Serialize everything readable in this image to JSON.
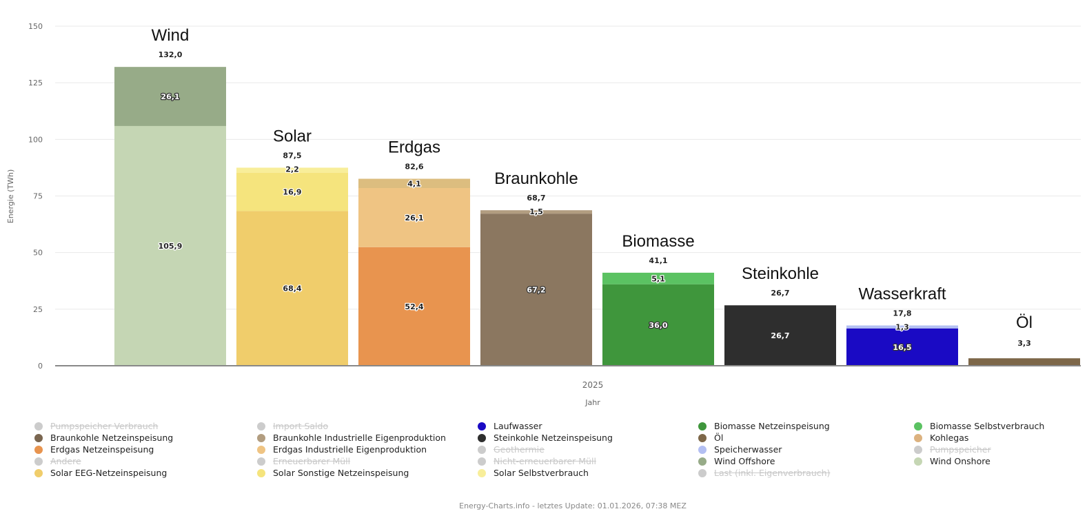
{
  "chart_data": {
    "type": "bar",
    "stacked": true,
    "xlabel": "Jahr",
    "ylabel": "Energie (TWh)",
    "x_category": "2025",
    "ylim": [
      0,
      150
    ],
    "yticks": [
      0,
      25,
      50,
      75,
      100,
      125,
      150
    ],
    "grid": true,
    "legend_position": "bottom",
    "categories": [
      "Wind",
      "Solar",
      "Erdgas",
      "Braunkohle",
      "Biomasse",
      "Steinkohle",
      "Wasserkraft",
      "Öl"
    ],
    "totals": [
      "132,0",
      "87,5",
      "82,6",
      "68,7",
      "41,1",
      "26,7",
      "17,8",
      "3,3"
    ],
    "total_values": [
      132.0,
      87.5,
      82.6,
      68.7,
      41.1,
      26.7,
      17.8,
      3.3
    ],
    "stacks": [
      {
        "category": "Wind",
        "segments": [
          {
            "series": "Wind Onshore",
            "value": 105.9,
            "label": "105,9",
            "color": "#c5d6b4"
          },
          {
            "series": "Wind Offshore",
            "value": 26.1,
            "label": "26,1",
            "color": "#97ab88"
          }
        ]
      },
      {
        "category": "Solar",
        "segments": [
          {
            "series": "Solar EEG-Netzeinspeisung",
            "value": 68.4,
            "label": "68,4",
            "color": "#f0cd6b"
          },
          {
            "series": "Solar Sonstige Netzeinspeisung",
            "value": 16.9,
            "label": "16,9",
            "color": "#f5e47d"
          },
          {
            "series": "Solar Selbstverbrauch",
            "value": 2.2,
            "label": "2,2",
            "color": "#f8ee9a"
          }
        ]
      },
      {
        "category": "Erdgas",
        "segments": [
          {
            "series": "Erdgas Netzeinspeisung",
            "value": 52.4,
            "label": "52,4",
            "color": "#e8944f"
          },
          {
            "series": "Erdgas Industrielle Eigenproduktion",
            "value": 26.1,
            "label": "26,1",
            "color": "#efc483"
          },
          {
            "series": "Kohlegas",
            "value": 4.1,
            "label": "4,1",
            "color": "#dcbd7f"
          }
        ]
      },
      {
        "category": "Braunkohle",
        "segments": [
          {
            "series": "Braunkohle Netzeinspeisung",
            "value": 67.2,
            "label": "67,2",
            "color": "#8b7760"
          },
          {
            "series": "Braunkohle Industrielle Eigenproduktion",
            "value": 1.5,
            "label": "1,5",
            "color": "#b29d80"
          }
        ]
      },
      {
        "category": "Biomasse",
        "segments": [
          {
            "series": "Biomasse Netzeinspeisung",
            "value": 36.0,
            "label": "36,0",
            "color": "#3f963c"
          },
          {
            "series": "Biomasse Selbstverbrauch",
            "value": 5.1,
            "label": "5,1",
            "color": "#5bc262"
          }
        ]
      },
      {
        "category": "Steinkohle",
        "segments": [
          {
            "series": "Steinkohle Netzeinspeisung",
            "value": 26.7,
            "label": "26,7",
            "color": "#2e2e2e"
          }
        ]
      },
      {
        "category": "Wasserkraft",
        "segments": [
          {
            "series": "Laufwasser",
            "value": 16.5,
            "label": "16,5",
            "color": "#1a0ac4"
          },
          {
            "series": "Speicherwasser",
            "value": 1.3,
            "label": "1,3",
            "color": "#b3bff2"
          }
        ]
      },
      {
        "category": "Öl",
        "segments": [
          {
            "series": "Öl",
            "value": 3.3,
            "label": "",
            "color": "#7d6749"
          }
        ]
      }
    ]
  },
  "legend": [
    {
      "label": "Pumpspeicher Verbrauch",
      "color": "#cccccc",
      "enabled": false
    },
    {
      "label": "Import Saldo",
      "color": "#cccccc",
      "enabled": false
    },
    {
      "label": "Laufwasser",
      "color": "#1a0ac4",
      "enabled": true
    },
    {
      "label": "Biomasse Netzeinspeisung",
      "color": "#3f963c",
      "enabled": true
    },
    {
      "label": "Biomasse Selbstverbrauch",
      "color": "#5bc262",
      "enabled": true
    },
    {
      "label": "Braunkohle Netzeinspeisung",
      "color": "#7a6650",
      "enabled": true
    },
    {
      "label": "Braunkohle Industrielle Eigenproduktion",
      "color": "#b29d80",
      "enabled": true
    },
    {
      "label": "Steinkohle Netzeinspeisung",
      "color": "#2e2e2e",
      "enabled": true
    },
    {
      "label": "Öl",
      "color": "#7d6749",
      "enabled": true
    },
    {
      "label": "Kohlegas",
      "color": "#dcb27f",
      "enabled": true
    },
    {
      "label": "Erdgas Netzeinspeisung",
      "color": "#e8944f",
      "enabled": true
    },
    {
      "label": "Erdgas Industrielle Eigenproduktion",
      "color": "#efc483",
      "enabled": true
    },
    {
      "label": "Geothermie",
      "color": "#cccccc",
      "enabled": false
    },
    {
      "label": "Speicherwasser",
      "color": "#b3bff2",
      "enabled": true
    },
    {
      "label": "Pumpspeicher",
      "color": "#cccccc",
      "enabled": false
    },
    {
      "label": "Andere",
      "color": "#cccccc",
      "enabled": false
    },
    {
      "label": "Erneuerbarer Müll",
      "color": "#cccccc",
      "enabled": false
    },
    {
      "label": "Nicht-erneuerbarer Müll",
      "color": "#cccccc",
      "enabled": false
    },
    {
      "label": "Wind Offshore",
      "color": "#97ab88",
      "enabled": true
    },
    {
      "label": "Wind Onshore",
      "color": "#c5d6b4",
      "enabled": true
    },
    {
      "label": "Solar EEG-Netzeinspeisung",
      "color": "#f0cd6b",
      "enabled": true
    },
    {
      "label": "Solar Sonstige Netzeinspeisung",
      "color": "#f5e47d",
      "enabled": true
    },
    {
      "label": "Solar Selbstverbrauch",
      "color": "#f8ee9a",
      "enabled": true
    },
    {
      "label": "Last (inkl. Eigenverbrauch)",
      "color": "#cccccc",
      "enabled": false
    }
  ],
  "credits": "Energy-Charts.info - letztes Update: 01.01.2026, 07:38 MEZ"
}
